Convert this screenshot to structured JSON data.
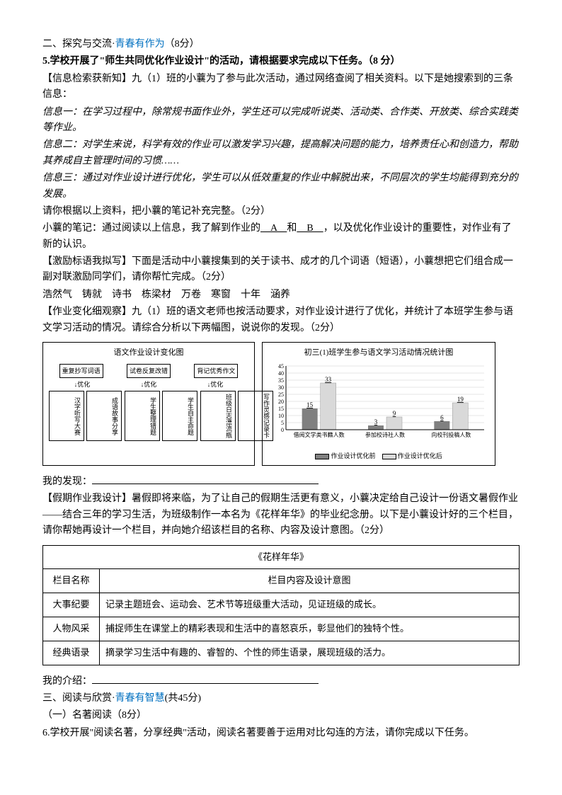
{
  "section2": {
    "heading_pre": "二、探究与交流·",
    "heading_blue": "青春有作为",
    "heading_score": "（8分）",
    "q5_bold": "5.学校开展了\"师生共同优化作业设计\"的活动，请根据要求完成以下任务。（8 分）",
    "info_intro": "【信息检索获新知】九（1）班的小蘘为了参与此次活动，通过网络查阅了相关资料。以下是她搜索到的三条信息：",
    "info1_label": "信息一：",
    "info1_text": "在学习过程中，除常规书面作业外，学生还可以完成听说类、活动类、合作类、开放类、综合实践类等作业。",
    "info2_label": "信息二：",
    "info2_text": "对学生来说，科学有效的作业可以激发学习兴趣，提高解决问题的能力，培养责任心和创造力，帮助其养成自主管理时间的习惯……",
    "info3_label": "信息三：",
    "info3_text": "通过对作业设计进行优化，学生可以从低效重复的作业中解脱出来，不同层次的学生均能得到充分的发展。",
    "note_prompt": "请你根据以上资料，把小蘘的笔记补充完整。（2分）",
    "note_pre": "小蘘的笔记：通过阅读以上信息，我了解到作业的",
    "note_a": "　A　",
    "note_mid": "和",
    "note_b": "　B　",
    "note_post": "，以及优化作业设计的重要性，对作业有了新的认识。",
    "couplet_intro": "【激励标语我拟写】下面是活动中小蘘搜集到的关于读书、成才的几个词语（短语），小蘘想把它们组合成一副对联激励同学们，请你帮忙完成。（2分）",
    "couplet_words": "浩然气　铸就　诗书　栋梁材　万卷　寒窗　十年　涵养",
    "observe_intro": "【作业变化细观察】九（1）班的语文老师也按活动要求，对作业设计进行了优化，并统计了本班学生参与语文学习活动的情况。请综合分析以下两幅图，说说你的发现。（2分）",
    "discovery_label": "我的发现：",
    "summer_intro": "【假期作业我设计】暑假即将来临，为了让自己的假期生活更有意义，小蘘决定给自己设计一份语文暑假作业——结合三年的学习生活，为班级制作一本名为《花样年华》的毕业纪念册。以下是小蘘设计好的三个栏目，请你帮她再设计一个栏目，并向她介绍该栏目的名称、内容及设计意图。（2分）",
    "intro_label": "我的介绍："
  },
  "flowchart": {
    "title": "语文作业设计变化图",
    "top1": "重复抄写词语",
    "top2": "试卷反复改错",
    "top3": "背记优秀作文",
    "arrow_label": "优化",
    "bot1a": "汉字听写大赛",
    "bot1b": "成语故事分享",
    "bot2a": "学生整理错题",
    "bot2b": "学生自主命题",
    "bot3a": "班级日志漂流瓶",
    "bot3b": "写作灵感记录卡"
  },
  "barchart": {
    "title": "初三(1)班学生参与语文学习活动情况统计图",
    "ymax": 45,
    "ytick": 5,
    "categories": [
      "借阅文学类书籍人数",
      "参加校诗社人数",
      "向校刊投稿人数"
    ],
    "before_values": [
      15,
      3,
      6
    ],
    "after_values": [
      33,
      9,
      19
    ],
    "before_color": "#808080",
    "after_color": "#d9d9d9",
    "legend_before": "作业设计优化前",
    "legend_after": "作业设计优化后"
  },
  "table": {
    "title": "《花样年华》",
    "header_col1": "栏目名称",
    "header_col2": "栏目内容及设计意图",
    "rows": [
      {
        "name": "大事纪要",
        "desc": "记录主题班会、运动会、艺术节等班级重大活动，见证班级的成长。"
      },
      {
        "name": "人物风采",
        "desc": "捕捉师生在课堂上的精彩表现和生活中的喜怒哀乐，彰显他们的独特个性。"
      },
      {
        "name": "经典语录",
        "desc": "摘录学习生活中有趣的、睿智的、个性的师生语录，展现班级的活力。"
      }
    ]
  },
  "section3": {
    "heading_pre": "三、阅读与欣赏·",
    "heading_blue": "青春有智慧",
    "heading_score": "(共45分)",
    "sub1": "（一）名著阅读（8分）",
    "q6": "6.学校开展\"阅读名著，分享经典\"活动，阅读名著要善于运用对比勾连的方法，请你完成以下任务。"
  }
}
